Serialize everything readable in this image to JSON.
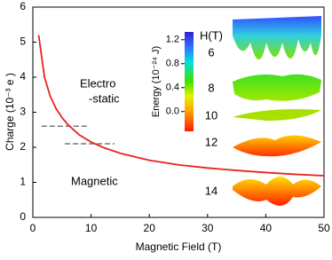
{
  "chart_data": {
    "type": "line",
    "x_label": "Magnetic Field (T)",
    "y_label": "Charge (10⁻³ e )",
    "x": [
      1,
      2,
      3,
      4,
      5,
      6,
      8,
      10,
      12,
      15,
      20,
      25,
      30,
      35,
      40,
      45,
      50
    ],
    "series": [
      {
        "color": "#e8231e",
        "values": [
          5.2,
          4.0,
          3.45,
          3.1,
          2.85,
          2.65,
          2.35,
          2.15,
          2.0,
          1.83,
          1.63,
          1.5,
          1.41,
          1.34,
          1.28,
          1.23,
          1.19
        ]
      }
    ],
    "xlim": [
      0,
      50
    ],
    "xticks": [
      0,
      10,
      20,
      30,
      40,
      50
    ],
    "ylim": [
      0,
      6
    ],
    "yticks": [
      0,
      1,
      2,
      3,
      4,
      5,
      6
    ],
    "reference_lines": [
      {
        "y": 2.6,
        "x": [
          1.5,
          9.5
        ]
      },
      {
        "y": 2.1,
        "x": [
          5.5,
          14
        ]
      }
    ],
    "reference_color": "#777777",
    "annotations": [
      {
        "text": "Electro",
        "color": "#e8231e"
      },
      {
        "text": "-static",
        "color": "#e8231e"
      },
      {
        "text": "Magnetic",
        "color": "#3a8fd8"
      }
    ],
    "colorbar": {
      "label": "Energy (10⁻²⁴ J)",
      "lim": [
        -0.33,
        1.33
      ],
      "ticks": [
        {
          "value": 0,
          "label": "0.0"
        },
        0.4,
        0.8,
        1.2
      ]
    },
    "field_label": "H(T)",
    "fields": [
      6,
      8,
      10,
      12,
      14
    ]
  }
}
